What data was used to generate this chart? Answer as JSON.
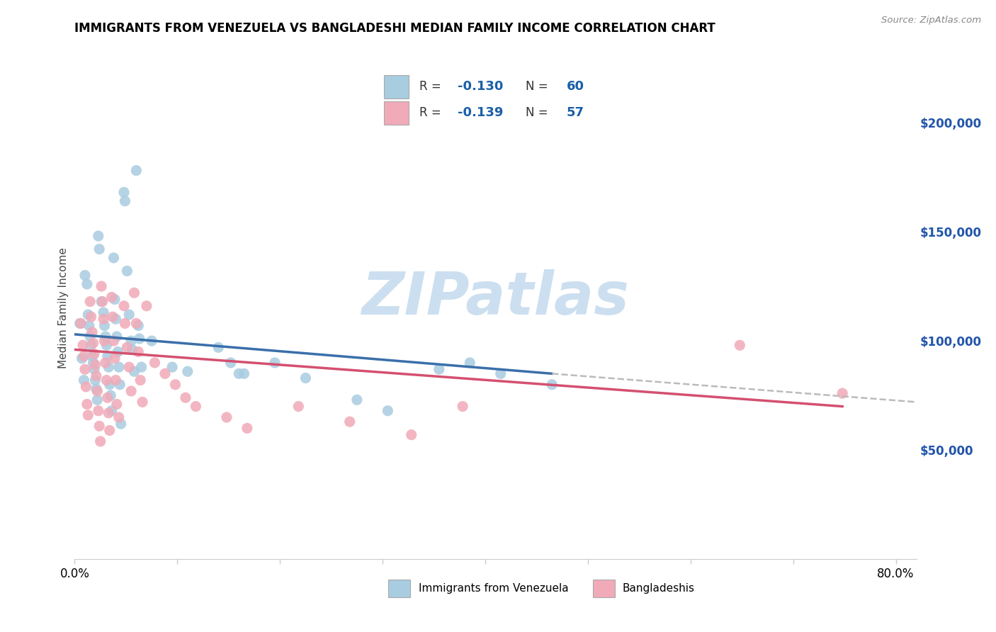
{
  "title": "IMMIGRANTS FROM VENEZUELA VS BANGLADESHI MEDIAN FAMILY INCOME CORRELATION CHART",
  "source": "Source: ZipAtlas.com",
  "ylabel": "Median Family Income",
  "ylim": [
    0,
    230000
  ],
  "xlim": [
    0.0,
    0.82
  ],
  "right_ytick_labels": [
    "$200,000",
    "$150,000",
    "$100,000",
    "$50,000"
  ],
  "right_ytick_values": [
    200000,
    150000,
    100000,
    50000
  ],
  "blue_color": "#a8cce0",
  "pink_color": "#f0aab8",
  "blue_line_color": "#3a6faa",
  "pink_line_color": "#d45070",
  "dashed_color": "#bbbbbb",
  "watermark_color": "#ccdff0",
  "grid_color": "#d8d8d8",
  "background_color": "#ffffff",
  "blue_scatter": [
    [
      0.005,
      108000
    ],
    [
      0.007,
      92000
    ],
    [
      0.009,
      82000
    ],
    [
      0.01,
      130000
    ],
    [
      0.012,
      126000
    ],
    [
      0.013,
      112000
    ],
    [
      0.014,
      107000
    ],
    [
      0.015,
      102000
    ],
    [
      0.016,
      98000
    ],
    [
      0.017,
      93000
    ],
    [
      0.018,
      90000
    ],
    [
      0.019,
      87000
    ],
    [
      0.02,
      82000
    ],
    [
      0.021,
      78000
    ],
    [
      0.022,
      73000
    ],
    [
      0.023,
      148000
    ],
    [
      0.024,
      142000
    ],
    [
      0.026,
      118000
    ],
    [
      0.028,
      113000
    ],
    [
      0.029,
      107000
    ],
    [
      0.03,
      102000
    ],
    [
      0.031,
      98000
    ],
    [
      0.032,
      93000
    ],
    [
      0.033,
      88000
    ],
    [
      0.034,
      80000
    ],
    [
      0.035,
      75000
    ],
    [
      0.036,
      68000
    ],
    [
      0.038,
      138000
    ],
    [
      0.039,
      119000
    ],
    [
      0.04,
      110000
    ],
    [
      0.041,
      102000
    ],
    [
      0.042,
      95000
    ],
    [
      0.043,
      88000
    ],
    [
      0.044,
      80000
    ],
    [
      0.045,
      62000
    ],
    [
      0.048,
      168000
    ],
    [
      0.049,
      164000
    ],
    [
      0.051,
      132000
    ],
    [
      0.053,
      112000
    ],
    [
      0.055,
      100000
    ],
    [
      0.056,
      96000
    ],
    [
      0.058,
      86000
    ],
    [
      0.06,
      178000
    ],
    [
      0.062,
      107000
    ],
    [
      0.063,
      101000
    ],
    [
      0.065,
      88000
    ],
    [
      0.075,
      100000
    ],
    [
      0.095,
      88000
    ],
    [
      0.11,
      86000
    ],
    [
      0.14,
      97000
    ],
    [
      0.152,
      90000
    ],
    [
      0.16,
      85000
    ],
    [
      0.195,
      90000
    ],
    [
      0.225,
      83000
    ],
    [
      0.275,
      73000
    ],
    [
      0.305,
      68000
    ],
    [
      0.355,
      87000
    ],
    [
      0.385,
      90000
    ],
    [
      0.415,
      85000
    ],
    [
      0.465,
      80000
    ],
    [
      0.165,
      85000
    ]
  ],
  "pink_scatter": [
    [
      0.006,
      108000
    ],
    [
      0.008,
      98000
    ],
    [
      0.009,
      93000
    ],
    [
      0.01,
      87000
    ],
    [
      0.011,
      79000
    ],
    [
      0.012,
      71000
    ],
    [
      0.013,
      66000
    ],
    [
      0.015,
      118000
    ],
    [
      0.016,
      111000
    ],
    [
      0.017,
      104000
    ],
    [
      0.018,
      99000
    ],
    [
      0.019,
      94000
    ],
    [
      0.02,
      89000
    ],
    [
      0.021,
      84000
    ],
    [
      0.022,
      77000
    ],
    [
      0.023,
      68000
    ],
    [
      0.024,
      61000
    ],
    [
      0.025,
      54000
    ],
    [
      0.026,
      125000
    ],
    [
      0.027,
      118000
    ],
    [
      0.028,
      110000
    ],
    [
      0.029,
      100000
    ],
    [
      0.03,
      90000
    ],
    [
      0.031,
      82000
    ],
    [
      0.032,
      74000
    ],
    [
      0.033,
      67000
    ],
    [
      0.034,
      59000
    ],
    [
      0.036,
      120000
    ],
    [
      0.037,
      111000
    ],
    [
      0.038,
      100000
    ],
    [
      0.039,
      92000
    ],
    [
      0.04,
      82000
    ],
    [
      0.041,
      71000
    ],
    [
      0.048,
      116000
    ],
    [
      0.049,
      108000
    ],
    [
      0.051,
      97000
    ],
    [
      0.053,
      88000
    ],
    [
      0.055,
      77000
    ],
    [
      0.058,
      122000
    ],
    [
      0.06,
      108000
    ],
    [
      0.062,
      95000
    ],
    [
      0.064,
      82000
    ],
    [
      0.066,
      72000
    ],
    [
      0.07,
      116000
    ],
    [
      0.078,
      90000
    ],
    [
      0.088,
      85000
    ],
    [
      0.098,
      80000
    ],
    [
      0.108,
      74000
    ],
    [
      0.118,
      70000
    ],
    [
      0.148,
      65000
    ],
    [
      0.168,
      60000
    ],
    [
      0.218,
      70000
    ],
    [
      0.268,
      63000
    ],
    [
      0.328,
      57000
    ],
    [
      0.378,
      70000
    ],
    [
      0.648,
      98000
    ],
    [
      0.748,
      76000
    ],
    [
      0.043,
      65000
    ]
  ],
  "blue_trend_x": [
    0.0,
    0.465
  ],
  "blue_trend_y": [
    103000,
    85000
  ],
  "pink_trend_x": [
    0.0,
    0.748
  ],
  "pink_trend_y": [
    96000,
    70000
  ],
  "dashed_trend_x": [
    0.465,
    0.82
  ],
  "dashed_trend_y": [
    85000,
    72000
  ]
}
